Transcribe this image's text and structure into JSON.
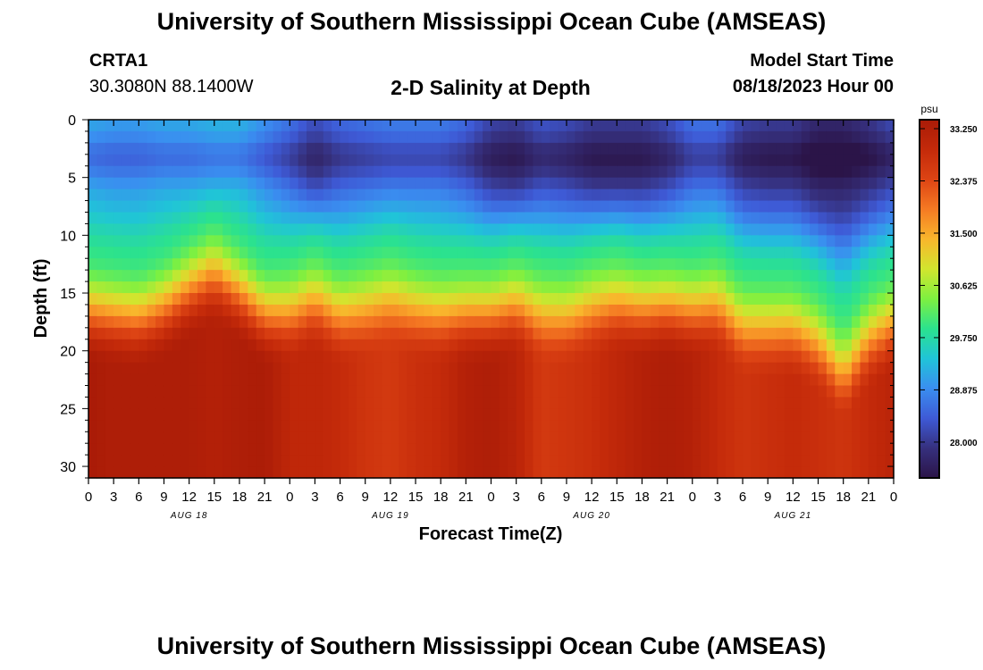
{
  "page": {
    "title": "University of Southern Mississippi Ocean Cube (AMSEAS)",
    "title_repeat": "University of Southern Mississippi Ocean Cube (AMSEAS)",
    "station": {
      "id": "CRTA1",
      "coords": "30.3080N  88.1400W"
    },
    "chart_title": "2-D Salinity at Depth",
    "model_start": {
      "label": "Model Start Time",
      "value": "08/18/2023 Hour 00"
    }
  },
  "colors": {
    "scale": [
      "#2b1448",
      "#36307e",
      "#3e5ad6",
      "#3a8ef0",
      "#20c4d8",
      "#2be28e",
      "#7ef040",
      "#d2e52e",
      "#f9b62c",
      "#f57a23",
      "#dd4414",
      "#c42a0a",
      "#a91b07"
    ]
  },
  "chart_data": {
    "type": "heatmap",
    "title": "2-D Salinity at Depth",
    "xlabel": "Forecast Time(Z)",
    "ylabel": "Depth (ft)",
    "x_ticks": [
      "0",
      "3",
      "6",
      "9",
      "12",
      "15",
      "18",
      "21",
      "0",
      "3",
      "6",
      "9",
      "12",
      "15",
      "18",
      "21",
      "0",
      "3",
      "6",
      "9",
      "12",
      "15",
      "18",
      "21",
      "0",
      "3",
      "6",
      "9",
      "12",
      "15",
      "18",
      "21",
      "0"
    ],
    "x_range_hours": [
      0,
      96
    ],
    "day_labels": [
      {
        "label": "AUG 18",
        "hour": 12
      },
      {
        "label": "AUG 19",
        "hour": 36
      },
      {
        "label": "AUG 20",
        "hour": 60
      },
      {
        "label": "AUG 21",
        "hour": 84
      }
    ],
    "y_ticks": [
      "0",
      "5",
      "10",
      "15",
      "20",
      "25",
      "30"
    ],
    "ylim_ft": [
      0,
      31
    ],
    "colorbar": {
      "unit": "psu",
      "range": [
        27.4,
        33.4
      ],
      "ticks": [
        "33.250",
        "32.375",
        "31.500",
        "30.625",
        "29.750",
        "28.875",
        "28.000"
      ]
    },
    "surface_salinity_psu": [
      28.9,
      28.8,
      28.8,
      28.9,
      28.9,
      29.0,
      29.0,
      28.7,
      28.4,
      28.0,
      28.3,
      28.4,
      28.5,
      28.5,
      28.5,
      28.3,
      27.9,
      27.8,
      28.1,
      28.0,
      27.8,
      27.8,
      27.8,
      28.0,
      28.4,
      28.4,
      27.9,
      27.8,
      27.8,
      27.5,
      27.5,
      27.7,
      28.0
    ],
    "halocline_depth_ft": [
      15.2,
      15.5,
      15.8,
      14.8,
      13.2,
      11.8,
      13.5,
      15.5,
      15.3,
      14.2,
      15.5,
      14.9,
      14.2,
      15.0,
      15.4,
      15.3,
      15.4,
      14.6,
      15.4,
      15.6,
      14.8,
      14.4,
      15.0,
      14.8,
      15.1,
      14.5,
      16.5,
      16.6,
      16.6,
      17.8,
      20.5,
      17.5,
      16.2
    ],
    "bottom_salinity_psu": [
      33.4,
      33.3,
      33.3,
      33.3,
      33.3,
      33.2,
      33.3,
      33.35,
      33.0,
      33.0,
      32.9,
      32.7,
      32.6,
      32.8,
      32.9,
      33.2,
      33.3,
      33.1,
      32.6,
      32.7,
      32.8,
      33.0,
      33.2,
      33.3,
      33.2,
      32.9,
      32.7,
      32.8,
      32.9,
      32.8,
      32.7,
      32.9,
      33.1
    ]
  }
}
